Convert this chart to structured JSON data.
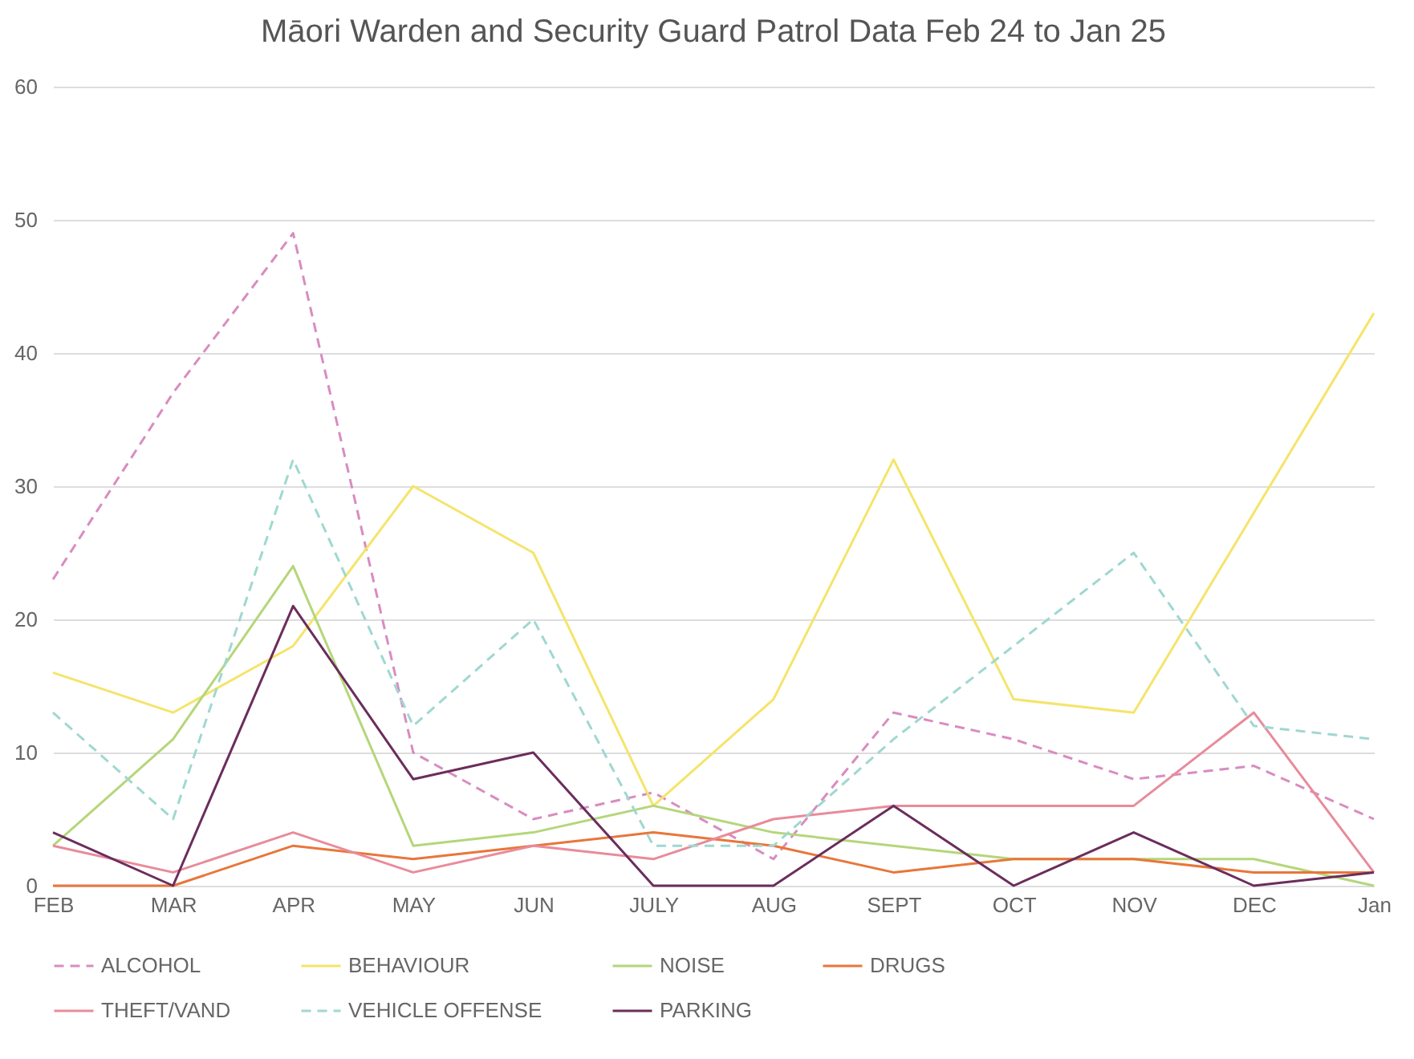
{
  "chart_data": {
    "type": "line",
    "title": "Māori Warden and Security Guard Patrol Data Feb 24 to Jan 25",
    "categories": [
      "FEB",
      "MAR",
      "APR",
      "MAY",
      "JUN",
      "JULY",
      "AUG",
      "SEPT",
      "OCT",
      "NOV",
      "DEC",
      "Jan"
    ],
    "series": [
      {
        "name": "ALCOHOL",
        "color": "#d98cc0",
        "line_style": "dashed",
        "values": [
          23,
          37,
          49,
          10,
          5,
          7,
          2,
          13,
          11,
          8,
          9,
          5
        ]
      },
      {
        "name": "BEHAVIOUR",
        "color": "#f5e46a",
        "line_style": "solid",
        "values": [
          16,
          13,
          18,
          30,
          25,
          6,
          14,
          32,
          14,
          13,
          28,
          43
        ]
      },
      {
        "name": "NOISE",
        "color": "#b5d67a",
        "line_style": "solid",
        "values": [
          3,
          11,
          24,
          3,
          4,
          6,
          4,
          3,
          2,
          2,
          2,
          0
        ]
      },
      {
        "name": "DRUGS",
        "color": "#e8763a",
        "line_style": "solid",
        "values": [
          0,
          0,
          3,
          2,
          3,
          4,
          3,
          1,
          2,
          2,
          1,
          1
        ]
      },
      {
        "name": "THEFT/VAND",
        "color": "#e88b9b",
        "line_style": "solid",
        "values": [
          3,
          1,
          4,
          1,
          3,
          2,
          5,
          6,
          6,
          6,
          13,
          1
        ]
      },
      {
        "name": "VEHICLE OFFENSE",
        "color": "#9fd8d0",
        "line_style": "dashed",
        "values": [
          13,
          5,
          32,
          12,
          20,
          3,
          3,
          11,
          18,
          25,
          12,
          11
        ]
      },
      {
        "name": "PARKING",
        "color": "#6b2d5c",
        "line_style": "solid",
        "values": [
          4,
          0,
          21,
          8,
          10,
          0,
          0,
          6,
          0,
          4,
          0,
          1
        ]
      }
    ],
    "ylim": [
      0,
      60
    ],
    "yticks": [
      0,
      10,
      20,
      30,
      40,
      50,
      60
    ],
    "grid": "y",
    "legend": "bottom",
    "marker": "none"
  }
}
